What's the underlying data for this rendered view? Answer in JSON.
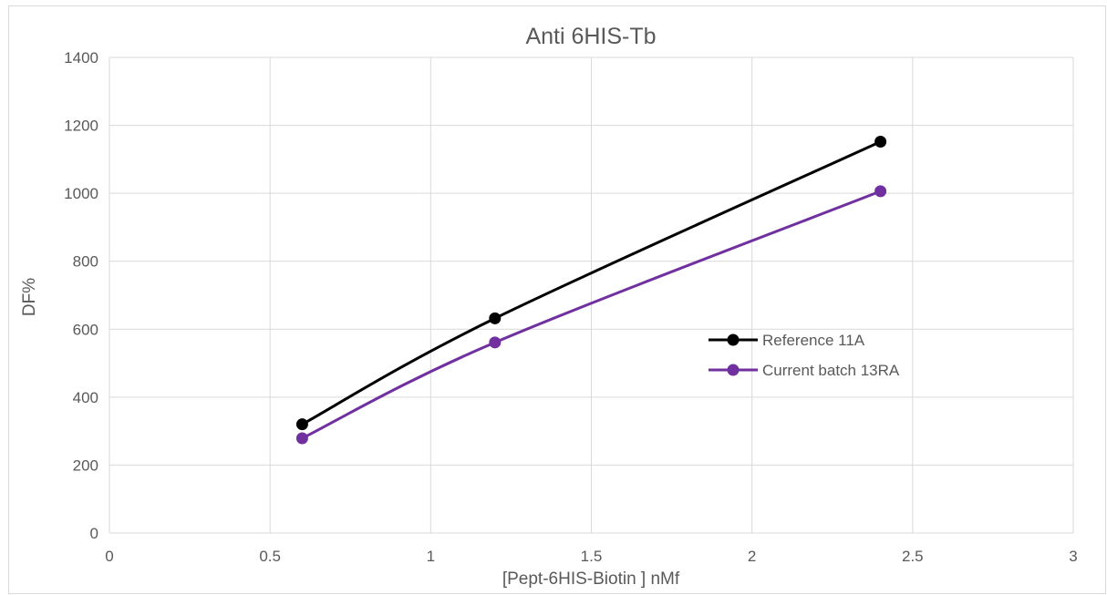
{
  "chart_data": {
    "type": "line",
    "title": "Anti 6HIS-Tb",
    "xlabel": "[Pept-6HIS-Biotin ] nMf",
    "ylabel": "DF%",
    "xlim": [
      0,
      3
    ],
    "ylim": [
      0,
      1400
    ],
    "x_ticks": [
      "0",
      "0.5",
      "1",
      "1.5",
      "2",
      "2.5",
      "3"
    ],
    "y_ticks": [
      "0",
      "200",
      "400",
      "600",
      "800",
      "1000",
      "1200",
      "1400"
    ],
    "grid": true,
    "smooth": true,
    "legend": {
      "position": "right"
    },
    "series": [
      {
        "name": "Reference 11A",
        "color": "#000000",
        "x": [
          0.6,
          1.2,
          2.4
        ],
        "y": [
          320,
          632,
          1152
        ]
      },
      {
        "name": "Current batch 13RA",
        "color": "#7030a0",
        "x": [
          0.6,
          1.2,
          2.4
        ],
        "y": [
          279,
          561,
          1006
        ]
      }
    ]
  }
}
